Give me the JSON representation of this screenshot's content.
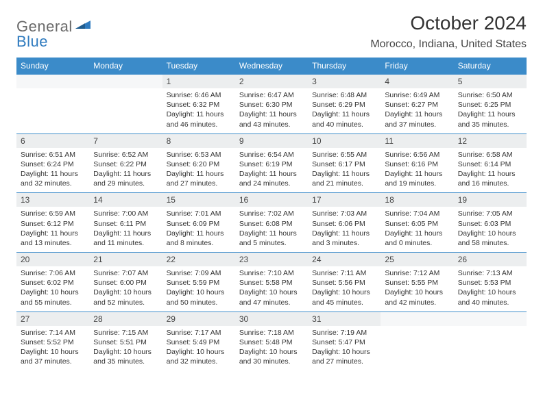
{
  "brand": {
    "general": "General",
    "blue": "Blue"
  },
  "title": "October 2024",
  "location": "Morocco, Indiana, United States",
  "colors": {
    "header_bg": "#3b8bc9",
    "header_text": "#ffffff",
    "daynum_bg": "#eceeef",
    "row_border": "#3b8bc9",
    "logo_gray": "#6a6a6a",
    "logo_blue": "#2f7bbf",
    "body_text": "#333333"
  },
  "weekdays": [
    "Sunday",
    "Monday",
    "Tuesday",
    "Wednesday",
    "Thursday",
    "Friday",
    "Saturday"
  ],
  "weeks": [
    [
      {
        "empty": true
      },
      {
        "empty": true
      },
      {
        "num": "1",
        "sunrise": "6:46 AM",
        "sunset": "6:32 PM",
        "dl1": "Daylight: 11 hours",
        "dl2": "and 46 minutes."
      },
      {
        "num": "2",
        "sunrise": "6:47 AM",
        "sunset": "6:30 PM",
        "dl1": "Daylight: 11 hours",
        "dl2": "and 43 minutes."
      },
      {
        "num": "3",
        "sunrise": "6:48 AM",
        "sunset": "6:29 PM",
        "dl1": "Daylight: 11 hours",
        "dl2": "and 40 minutes."
      },
      {
        "num": "4",
        "sunrise": "6:49 AM",
        "sunset": "6:27 PM",
        "dl1": "Daylight: 11 hours",
        "dl2": "and 37 minutes."
      },
      {
        "num": "5",
        "sunrise": "6:50 AM",
        "sunset": "6:25 PM",
        "dl1": "Daylight: 11 hours",
        "dl2": "and 35 minutes."
      }
    ],
    [
      {
        "num": "6",
        "sunrise": "6:51 AM",
        "sunset": "6:24 PM",
        "dl1": "Daylight: 11 hours",
        "dl2": "and 32 minutes."
      },
      {
        "num": "7",
        "sunrise": "6:52 AM",
        "sunset": "6:22 PM",
        "dl1": "Daylight: 11 hours",
        "dl2": "and 29 minutes."
      },
      {
        "num": "8",
        "sunrise": "6:53 AM",
        "sunset": "6:20 PM",
        "dl1": "Daylight: 11 hours",
        "dl2": "and 27 minutes."
      },
      {
        "num": "9",
        "sunrise": "6:54 AM",
        "sunset": "6:19 PM",
        "dl1": "Daylight: 11 hours",
        "dl2": "and 24 minutes."
      },
      {
        "num": "10",
        "sunrise": "6:55 AM",
        "sunset": "6:17 PM",
        "dl1": "Daylight: 11 hours",
        "dl2": "and 21 minutes."
      },
      {
        "num": "11",
        "sunrise": "6:56 AM",
        "sunset": "6:16 PM",
        "dl1": "Daylight: 11 hours",
        "dl2": "and 19 minutes."
      },
      {
        "num": "12",
        "sunrise": "6:58 AM",
        "sunset": "6:14 PM",
        "dl1": "Daylight: 11 hours",
        "dl2": "and 16 minutes."
      }
    ],
    [
      {
        "num": "13",
        "sunrise": "6:59 AM",
        "sunset": "6:12 PM",
        "dl1": "Daylight: 11 hours",
        "dl2": "and 13 minutes."
      },
      {
        "num": "14",
        "sunrise": "7:00 AM",
        "sunset": "6:11 PM",
        "dl1": "Daylight: 11 hours",
        "dl2": "and 11 minutes."
      },
      {
        "num": "15",
        "sunrise": "7:01 AM",
        "sunset": "6:09 PM",
        "dl1": "Daylight: 11 hours",
        "dl2": "and 8 minutes."
      },
      {
        "num": "16",
        "sunrise": "7:02 AM",
        "sunset": "6:08 PM",
        "dl1": "Daylight: 11 hours",
        "dl2": "and 5 minutes."
      },
      {
        "num": "17",
        "sunrise": "7:03 AM",
        "sunset": "6:06 PM",
        "dl1": "Daylight: 11 hours",
        "dl2": "and 3 minutes."
      },
      {
        "num": "18",
        "sunrise": "7:04 AM",
        "sunset": "6:05 PM",
        "dl1": "Daylight: 11 hours",
        "dl2": "and 0 minutes."
      },
      {
        "num": "19",
        "sunrise": "7:05 AM",
        "sunset": "6:03 PM",
        "dl1": "Daylight: 10 hours",
        "dl2": "and 58 minutes."
      }
    ],
    [
      {
        "num": "20",
        "sunrise": "7:06 AM",
        "sunset": "6:02 PM",
        "dl1": "Daylight: 10 hours",
        "dl2": "and 55 minutes."
      },
      {
        "num": "21",
        "sunrise": "7:07 AM",
        "sunset": "6:00 PM",
        "dl1": "Daylight: 10 hours",
        "dl2": "and 52 minutes."
      },
      {
        "num": "22",
        "sunrise": "7:09 AM",
        "sunset": "5:59 PM",
        "dl1": "Daylight: 10 hours",
        "dl2": "and 50 minutes."
      },
      {
        "num": "23",
        "sunrise": "7:10 AM",
        "sunset": "5:58 PM",
        "dl1": "Daylight: 10 hours",
        "dl2": "and 47 minutes."
      },
      {
        "num": "24",
        "sunrise": "7:11 AM",
        "sunset": "5:56 PM",
        "dl1": "Daylight: 10 hours",
        "dl2": "and 45 minutes."
      },
      {
        "num": "25",
        "sunrise": "7:12 AM",
        "sunset": "5:55 PM",
        "dl1": "Daylight: 10 hours",
        "dl2": "and 42 minutes."
      },
      {
        "num": "26",
        "sunrise": "7:13 AM",
        "sunset": "5:53 PM",
        "dl1": "Daylight: 10 hours",
        "dl2": "and 40 minutes."
      }
    ],
    [
      {
        "num": "27",
        "sunrise": "7:14 AM",
        "sunset": "5:52 PM",
        "dl1": "Daylight: 10 hours",
        "dl2": "and 37 minutes."
      },
      {
        "num": "28",
        "sunrise": "7:15 AM",
        "sunset": "5:51 PM",
        "dl1": "Daylight: 10 hours",
        "dl2": "and 35 minutes."
      },
      {
        "num": "29",
        "sunrise": "7:17 AM",
        "sunset": "5:49 PM",
        "dl1": "Daylight: 10 hours",
        "dl2": "and 32 minutes."
      },
      {
        "num": "30",
        "sunrise": "7:18 AM",
        "sunset": "5:48 PM",
        "dl1": "Daylight: 10 hours",
        "dl2": "and 30 minutes."
      },
      {
        "num": "31",
        "sunrise": "7:19 AM",
        "sunset": "5:47 PM",
        "dl1": "Daylight: 10 hours",
        "dl2": "and 27 minutes."
      },
      {
        "empty": true
      },
      {
        "empty": true
      }
    ]
  ],
  "labels": {
    "sunrise": "Sunrise: ",
    "sunset": "Sunset: "
  }
}
